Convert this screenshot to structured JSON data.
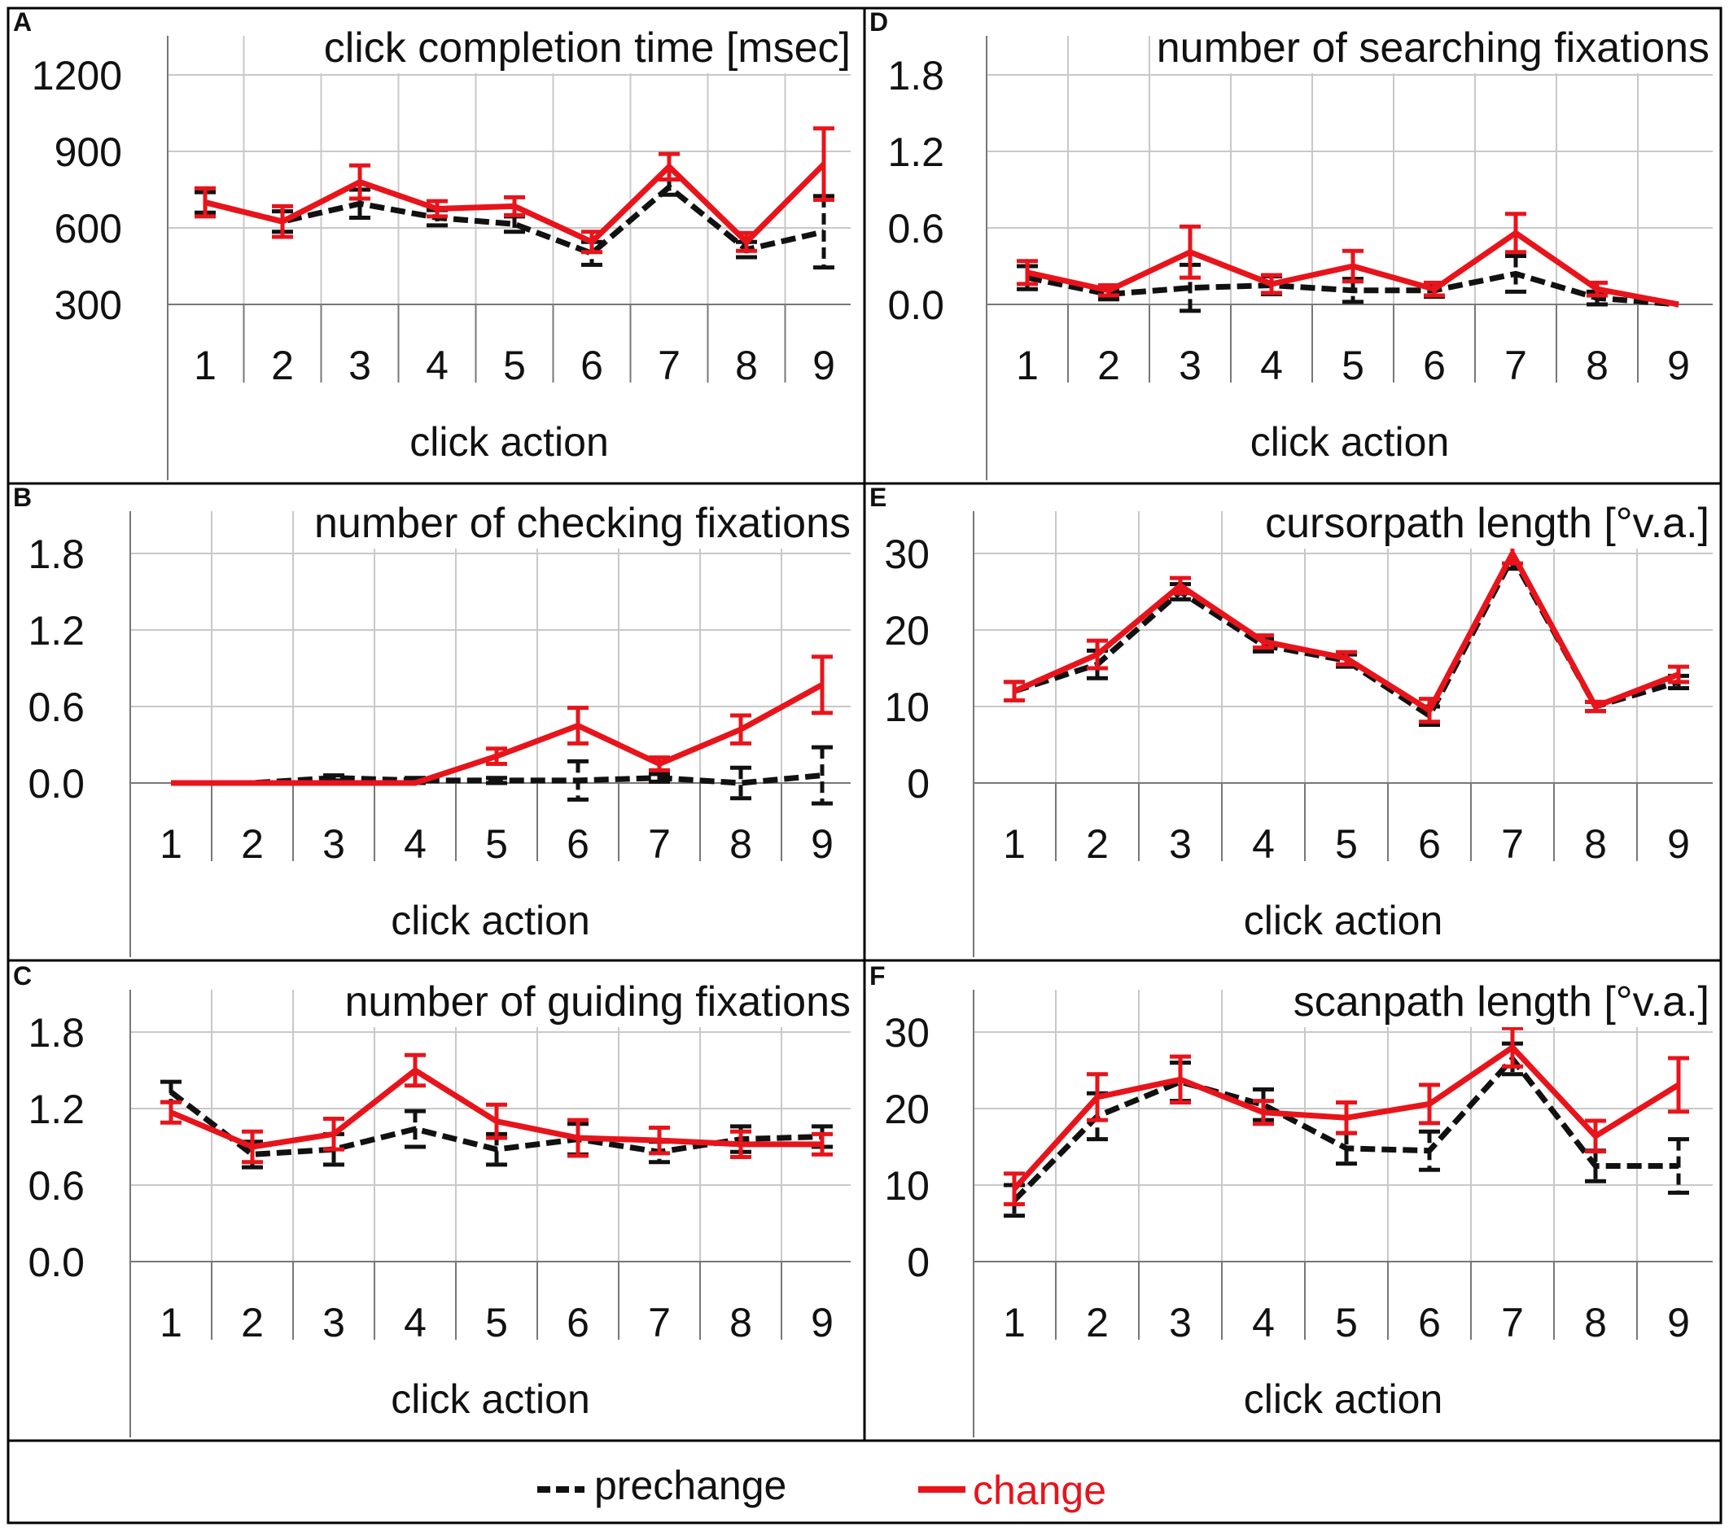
{
  "legend": {
    "items": [
      {
        "label": "prechange",
        "color": "#111111",
        "dash": true
      },
      {
        "label": "change",
        "color": "#e8141b",
        "dash": false
      }
    ]
  },
  "colors": {
    "prechange": "#111111",
    "change": "#e8141b",
    "grid": "#c8c8c8",
    "axis": "#777777",
    "frame": "#000000"
  },
  "chart_data": [
    {
      "panel": "A",
      "type": "line",
      "title": "click completion time [msec]",
      "xlabel": "click action",
      "ylim": [
        300,
        1200
      ],
      "yticks": [
        "300",
        "600",
        "900",
        "1200"
      ],
      "ytick_values": [
        300,
        600,
        900,
        1200
      ],
      "categories": [
        "1",
        "2",
        "3",
        "4",
        "5",
        "6",
        "7",
        "8",
        "9"
      ],
      "series": [
        {
          "name": "prechange",
          "values": [
            700,
            625,
            695,
            640,
            615,
            500,
            760,
            515,
            585
          ],
          "errors": [
            40,
            40,
            55,
            30,
            30,
            45,
            30,
            30,
            140
          ]
        },
        {
          "name": "change",
          "values": [
            700,
            625,
            780,
            675,
            685,
            545,
            840,
            545,
            850
          ],
          "errors": [
            55,
            60,
            65,
            30,
            35,
            40,
            50,
            35,
            140
          ]
        }
      ]
    },
    {
      "panel": "D",
      "type": "line",
      "title": "number of searching fixations",
      "xlabel": "click action",
      "ylim": [
        0.0,
        1.8
      ],
      "yticks": [
        "0.0",
        "0.6",
        "1.2",
        "1.8"
      ],
      "ytick_values": [
        0.0,
        0.6,
        1.2,
        1.8
      ],
      "categories": [
        "1",
        "2",
        "3",
        "4",
        "5",
        "6",
        "7",
        "8",
        "9"
      ],
      "series": [
        {
          "name": "prechange",
          "values": [
            0.21,
            0.08,
            0.13,
            0.15,
            0.11,
            0.11,
            0.24,
            0.05,
            0.0
          ],
          "errors": [
            0.09,
            0.04,
            0.18,
            0.07,
            0.09,
            0.05,
            0.14,
            0.05,
            0.0
          ]
        },
        {
          "name": "change",
          "values": [
            0.25,
            0.11,
            0.41,
            0.16,
            0.3,
            0.12,
            0.56,
            0.12,
            0.0
          ],
          "errors": [
            0.09,
            0.04,
            0.2,
            0.07,
            0.12,
            0.05,
            0.15,
            0.05,
            0.0
          ]
        }
      ]
    },
    {
      "panel": "B",
      "type": "line",
      "title": "number of checking fixations",
      "xlabel": "click action",
      "ylim": [
        0.0,
        1.8
      ],
      "yticks": [
        "0.0",
        "0.6",
        "1.2",
        "1.8"
      ],
      "ytick_values": [
        0.0,
        0.6,
        1.2,
        1.8
      ],
      "categories": [
        "1",
        "2",
        "3",
        "4",
        "5",
        "6",
        "7",
        "8",
        "9"
      ],
      "series": [
        {
          "name": "prechange",
          "values": [
            0.0,
            0.0,
            0.04,
            0.02,
            0.02,
            0.02,
            0.04,
            0.0,
            0.06
          ],
          "errors": [
            0.0,
            0.0,
            0.02,
            0.02,
            0.02,
            0.15,
            0.03,
            0.12,
            0.22
          ]
        },
        {
          "name": "change",
          "values": [
            0.0,
            0.0,
            0.0,
            0.0,
            0.21,
            0.45,
            0.15,
            0.42,
            0.77
          ],
          "errors": [
            0.0,
            0.0,
            0.0,
            0.0,
            0.06,
            0.14,
            0.05,
            0.11,
            0.22
          ]
        }
      ]
    },
    {
      "panel": "E",
      "type": "line",
      "title": "cursorpath length [°v.a.]",
      "xlabel": "click action",
      "ylim": [
        0,
        30
      ],
      "yticks": [
        "0",
        "10",
        "20",
        "30"
      ],
      "ytick_values": [
        0,
        10,
        20,
        30
      ],
      "categories": [
        "1",
        "2",
        "3",
        "4",
        "5",
        "6",
        "7",
        "8",
        "9"
      ],
      "series": [
        {
          "name": "prechange",
          "values": [
            12.0,
            15.5,
            25.0,
            18.0,
            16.0,
            8.8,
            29.5,
            10.0,
            13.2
          ],
          "errors": [
            1.2,
            1.8,
            1.0,
            0.8,
            0.8,
            1.2,
            1.5,
            0.6,
            0.8
          ]
        },
        {
          "name": "change",
          "values": [
            12.0,
            16.8,
            25.8,
            18.5,
            16.3,
            9.5,
            30.0,
            10.0,
            14.2
          ],
          "errors": [
            1.2,
            1.8,
            1.0,
            0.8,
            0.8,
            1.5,
            1.3,
            0.6,
            1.0
          ]
        }
      ]
    },
    {
      "panel": "C",
      "type": "line",
      "title": "number of guiding fixations",
      "xlabel": "click action",
      "ylim": [
        0.0,
        1.8
      ],
      "yticks": [
        "0.0",
        "0.6",
        "1.2",
        "1.8"
      ],
      "ytick_values": [
        0.0,
        0.6,
        1.2,
        1.8
      ],
      "categories": [
        "1",
        "2",
        "3",
        "4",
        "5",
        "6",
        "7",
        "8",
        "9"
      ],
      "series": [
        {
          "name": "prechange",
          "values": [
            1.33,
            0.84,
            0.88,
            1.04,
            0.88,
            0.96,
            0.86,
            0.96,
            0.98
          ],
          "errors": [
            0.08,
            0.1,
            0.12,
            0.14,
            0.12,
            0.12,
            0.08,
            0.1,
            0.08
          ]
        },
        {
          "name": "change",
          "values": [
            1.17,
            0.9,
            1.0,
            1.5,
            1.1,
            0.97,
            0.95,
            0.92,
            0.92
          ],
          "errors": [
            0.08,
            0.12,
            0.12,
            0.12,
            0.13,
            0.14,
            0.1,
            0.1,
            0.08
          ]
        }
      ]
    },
    {
      "panel": "F",
      "type": "line",
      "title": "scanpath length [°v.a.]",
      "xlabel": "click action",
      "ylim": [
        0,
        30
      ],
      "yticks": [
        "0",
        "10",
        "20",
        "30"
      ],
      "ytick_values": [
        0,
        10,
        20,
        30
      ],
      "categories": [
        "1",
        "2",
        "3",
        "4",
        "5",
        "6",
        "7",
        "8",
        "9"
      ],
      "series": [
        {
          "name": "prechange",
          "values": [
            8.0,
            19.0,
            23.5,
            20.5,
            14.8,
            14.5,
            26.5,
            12.5,
            12.5
          ],
          "errors": [
            2.0,
            3.0,
            2.5,
            2.0,
            2.0,
            2.5,
            2.0,
            2.0,
            3.5
          ]
        },
        {
          "name": "change",
          "values": [
            9.5,
            21.5,
            23.8,
            19.5,
            18.8,
            20.6,
            28.0,
            16.4,
            23.1
          ],
          "errors": [
            2.0,
            3.0,
            3.0,
            1.5,
            2.0,
            2.5,
            2.5,
            2.0,
            3.5
          ]
        }
      ]
    }
  ]
}
